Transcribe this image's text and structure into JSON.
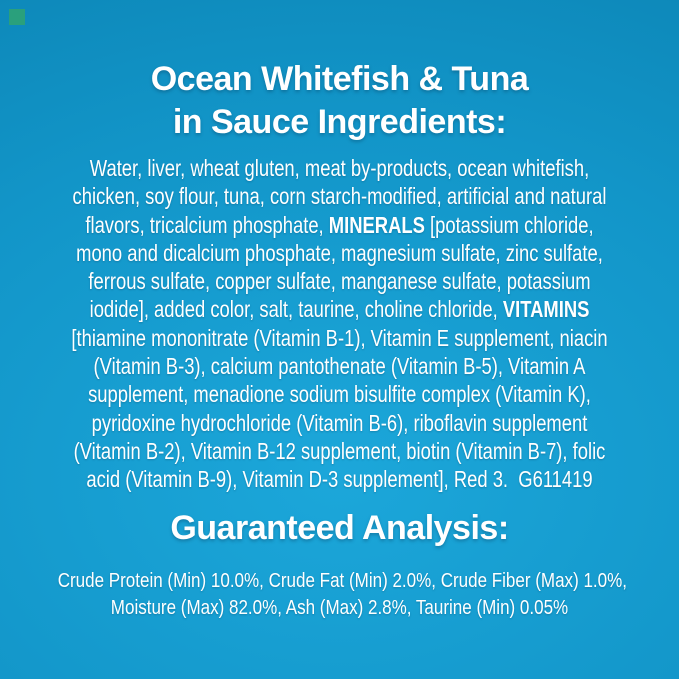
{
  "colors": {
    "background_light": "#1ca7da",
    "background_mid": "#1295c8",
    "background_dark": "#0b82b2",
    "text": "#ffffff",
    "corner_swatch": "#2aa07c"
  },
  "title": {
    "line1": "Ocean Whitefish & Tuna",
    "line2": "in Sauce Ingredients:"
  },
  "ingredients": {
    "lines": [
      [
        {
          "t": "Water, liver, wheat gluten, meat by-products, ocean whitefish,"
        }
      ],
      [
        {
          "t": "chicken, soy flour, tuna, corn starch-modified, artificial and natural"
        }
      ],
      [
        {
          "t": "flavors, tricalcium phosphate, "
        },
        {
          "t": "MINERALS",
          "b": true
        },
        {
          "t": " [potassium chloride,"
        }
      ],
      [
        {
          "t": "mono and dicalcium phosphate, magnesium sulfate, zinc sulfate,"
        }
      ],
      [
        {
          "t": "ferrous sulfate, copper sulfate, manganese sulfate, potassium"
        }
      ],
      [
        {
          "t": "iodide], added color, salt, taurine, choline chloride, "
        },
        {
          "t": "VITAMINS",
          "b": true
        }
      ],
      [
        {
          "t": "[thiamine mononitrate (Vitamin B-1), Vitamin E supplement, niacin"
        }
      ],
      [
        {
          "t": "(Vitamin B-3), calcium pantothenate (Vitamin B-5), Vitamin A"
        }
      ],
      [
        {
          "t": "supplement, menadione sodium bisulfite complex (Vitamin K),"
        }
      ],
      [
        {
          "t": "pyridoxine hydrochloride (Vitamin B-6), riboflavin supplement"
        }
      ],
      [
        {
          "t": "(Vitamin B-2), Vitamin B-12 supplement, biotin (Vitamin B-7), folic"
        }
      ],
      [
        {
          "t": "acid (Vitamin B-9), Vitamin D-3 supplement], Red 3.  G611419"
        }
      ]
    ]
  },
  "analysis": {
    "heading": "Guaranteed Analysis:",
    "lines": [
      "Crude Protein (Min) 10.0%, Crude Fat (Min) 2.0%, Crude Fiber (Max) 1.0%,",
      "Moisture (Max) 82.0%, Ash (Max) 2.8%, Taurine (Min) 0.05%"
    ]
  }
}
